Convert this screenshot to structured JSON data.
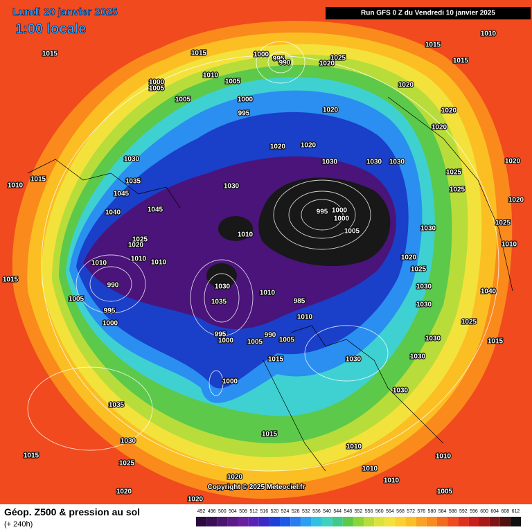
{
  "header": {
    "date": "Lundi 20 janvier 2025",
    "time": "1:00 locale",
    "run": "Run GFS 0 Z du Vendredi 10 janvier 2025"
  },
  "footer": {
    "title": "Géop. Z500 & pression au sol",
    "lead": "(+ 240h)",
    "copyright": "Copyright © 2025 Meteociel.fr"
  },
  "colorbar": {
    "ticks": [
      492,
      496,
      500,
      504,
      508,
      512,
      516,
      520,
      524,
      528,
      532,
      536,
      540,
      544,
      548,
      552,
      556,
      560,
      564,
      568,
      572,
      576,
      580,
      584,
      588,
      592,
      596,
      600,
      604,
      608,
      612
    ]
  },
  "pressure_labels": [
    "1015",
    "1015",
    "1000",
    "995",
    "990",
    "1025",
    "1020",
    "1015",
    "1015",
    "1010",
    "1010",
    "1000",
    "1005",
    "1005",
    "1005",
    "1000",
    "995",
    "1020",
    "1020",
    "1020",
    "1020",
    "1020",
    "1020",
    "1030",
    "1030",
    "1030",
    "1030",
    "1020",
    "1010",
    "1015",
    "1035",
    "1030",
    "1025",
    "1025",
    "1045",
    "1040",
    "1045",
    "995",
    "1000",
    "1000",
    "1005",
    "1010",
    "1020",
    "1025",
    "1030",
    "1025",
    "1020",
    "1010",
    "1010",
    "1010",
    "1020",
    "1025",
    "1010",
    "1015",
    "990",
    "1030",
    "1030",
    "1005",
    "995",
    "1035",
    "1010",
    "1000",
    "985",
    "1030",
    "1040",
    "1025",
    "1010",
    "995",
    "1000",
    "990",
    "1005",
    "1005",
    "1030",
    "1015",
    "1015",
    "1030",
    "1030",
    "1000",
    "1030",
    "1035",
    "1030",
    "1015",
    "1010",
    "1015",
    "1025",
    "1010",
    "1010",
    "1010",
    "1020",
    "1020",
    "1005",
    "1020"
  ]
}
